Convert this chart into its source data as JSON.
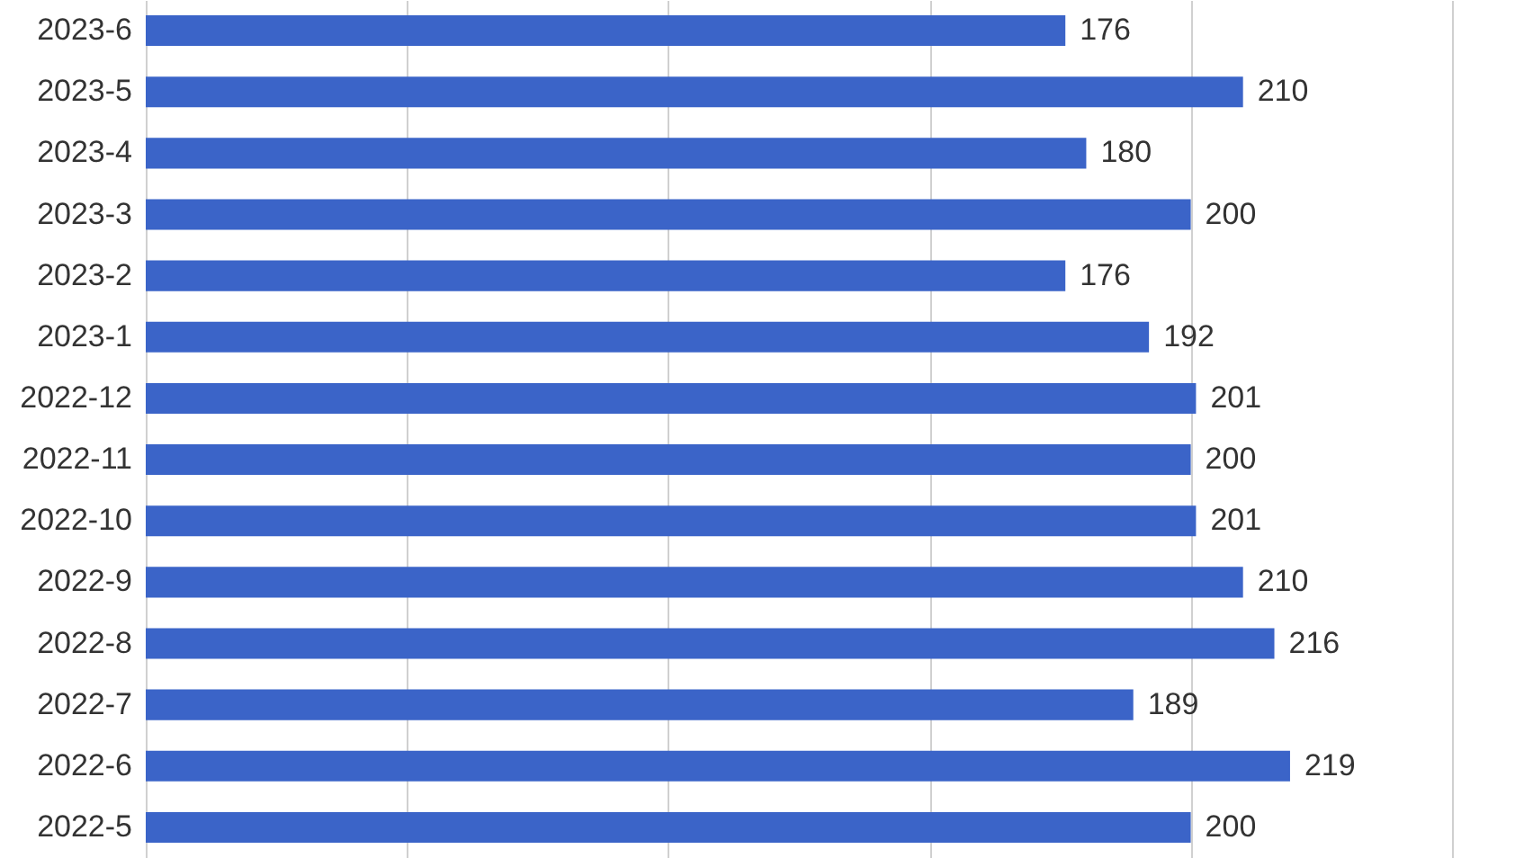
{
  "chart_data": {
    "type": "bar",
    "orientation": "horizontal",
    "categories": [
      "2023-6",
      "2023-5",
      "2023-4",
      "2023-3",
      "2023-2",
      "2023-1",
      "2022-12",
      "2022-11",
      "2022-10",
      "2022-9",
      "2022-8",
      "2022-7",
      "2022-6",
      "2022-5"
    ],
    "values": [
      176,
      210,
      180,
      200,
      176,
      192,
      201,
      200,
      201,
      210,
      216,
      189,
      219,
      200
    ],
    "color": "#3b64c8",
    "data_labels": true,
    "xlim": [
      0,
      250
    ],
    "xticks": [
      {
        "value": 0,
        "label": null
      },
      {
        "value": 50,
        "label": null
      },
      {
        "value": 100,
        "label": null
      },
      {
        "value": 150,
        "label": null
      },
      {
        "value": 200,
        "label": null
      },
      {
        "value": 250,
        "label": null
      }
    ],
    "tick_labels": "y",
    "grid": "x"
  }
}
